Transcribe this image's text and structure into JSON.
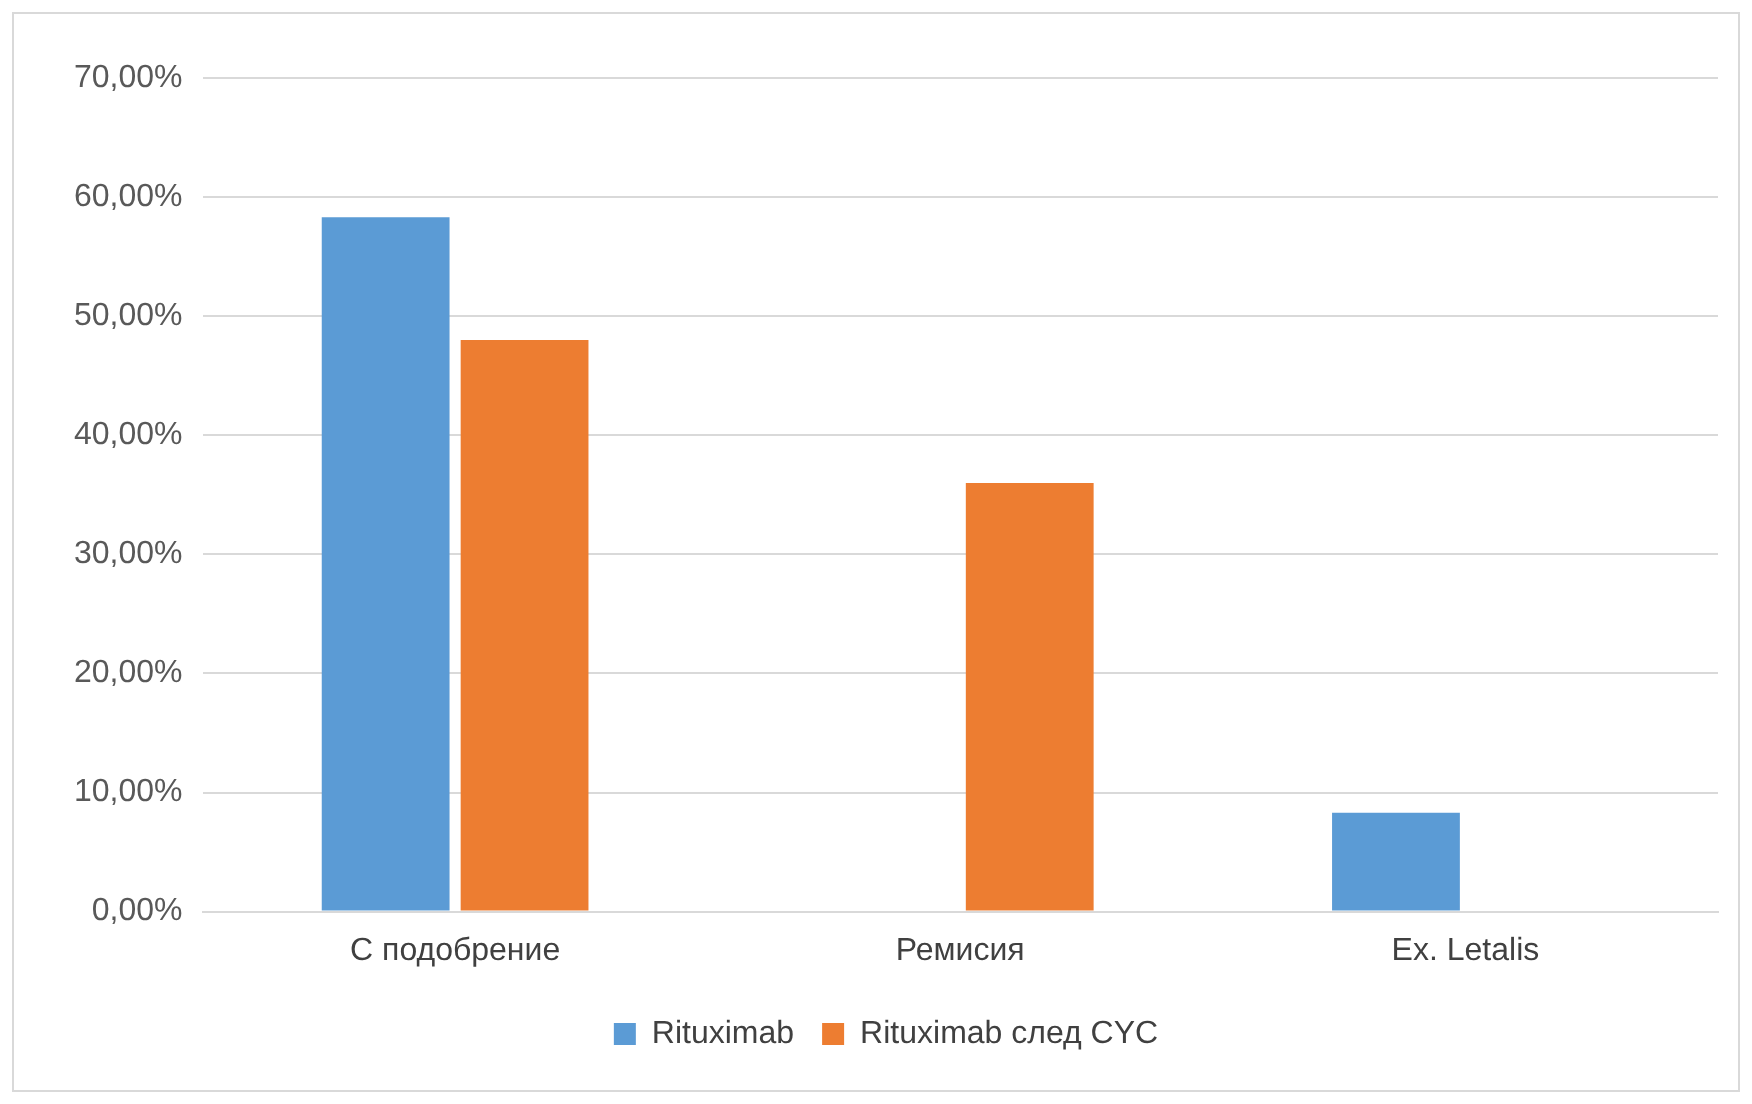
{
  "chart_data": {
    "type": "bar",
    "categories": [
      "С подобрение",
      "Ремисия",
      "Ex. Letalis"
    ],
    "series": [
      {
        "name": "Rituximab",
        "color": "#5b9bd5",
        "values": [
          58.3,
          0,
          8.3
        ]
      },
      {
        "name": "Rituximab след CYC",
        "color": "#ed7d31",
        "values": [
          48,
          36,
          0
        ]
      }
    ],
    "ylim": [
      0,
      70
    ],
    "yticks": [
      {
        "value": 0,
        "label": "0,00%"
      },
      {
        "value": 10,
        "label": "10,00%"
      },
      {
        "value": 20,
        "label": "20,00%"
      },
      {
        "value": 30,
        "label": "30,00%"
      },
      {
        "value": 40,
        "label": "40,00%"
      },
      {
        "value": 50,
        "label": "50,00%"
      },
      {
        "value": 60,
        "label": "60,00%"
      },
      {
        "value": 70,
        "label": "70,00%"
      }
    ],
    "grid": "y",
    "legend": "bottom"
  }
}
